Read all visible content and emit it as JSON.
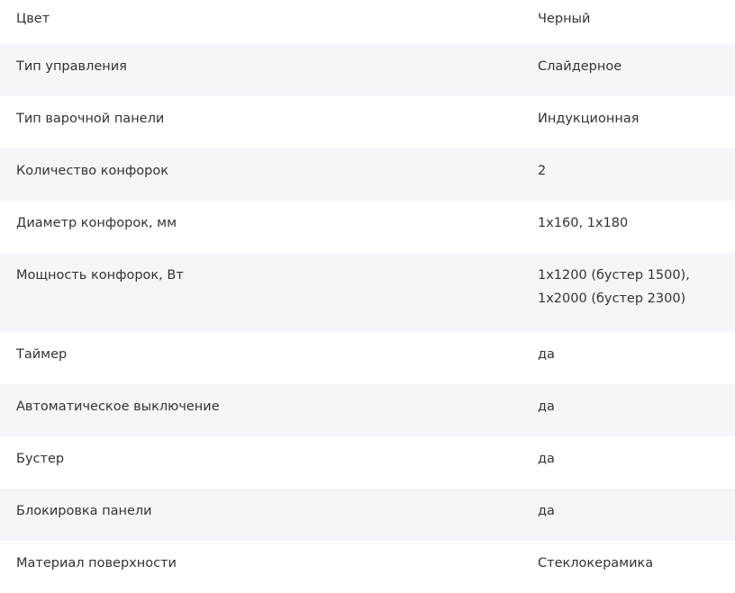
{
  "specs": [
    {
      "label": "Цвет",
      "value": [
        "Черный"
      ]
    },
    {
      "label": "Тип управления",
      "value": [
        "Слайдерное"
      ]
    },
    {
      "label": "Тип варочной панели",
      "value": [
        "Индукционная"
      ]
    },
    {
      "label": "Количество конфорок",
      "value": [
        "2"
      ]
    },
    {
      "label": "Диаметр конфорок, мм",
      "value": [
        "1x160, 1x180"
      ]
    },
    {
      "label": "Мощность конфорок, Вт",
      "value": [
        "1x1200 (бустер 1500),",
        "1x2000 (бустер 2300)"
      ]
    },
    {
      "label": "Таймер",
      "value": [
        "да"
      ]
    },
    {
      "label": "Автоматическое выключение",
      "value": [
        "да"
      ]
    },
    {
      "label": "Бустер",
      "value": [
        "да"
      ]
    },
    {
      "label": "Блокировка панели",
      "value": [
        "да"
      ]
    },
    {
      "label": "Материал поверхности",
      "value": [
        "Стеклокерамика"
      ]
    }
  ],
  "colors": {
    "stripe": "#f5f6fa",
    "text": "#333333"
  }
}
